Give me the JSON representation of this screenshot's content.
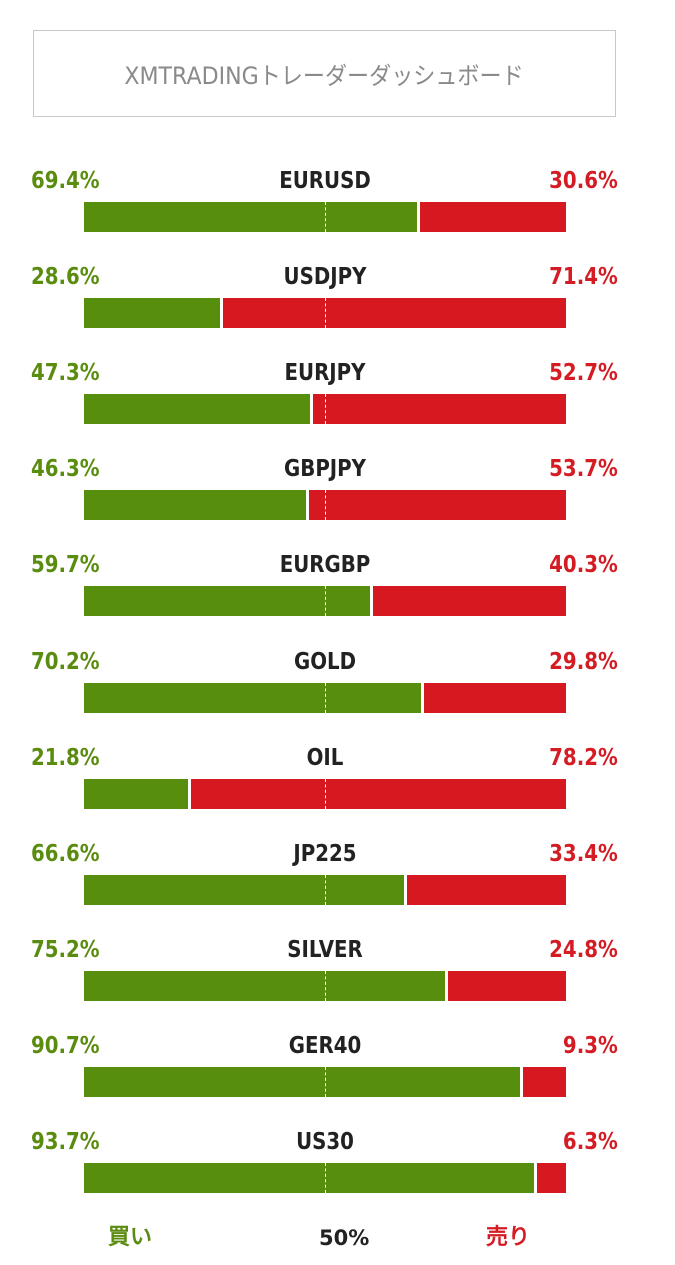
{
  "title": "XMTRADINGトレーダーダッシュボード",
  "chart_data": {
    "type": "bar",
    "orientation": "horizontal-stacked",
    "categories": [
      "EURUSD",
      "USDJPY",
      "EURJPY",
      "GBPJPY",
      "EURGBP",
      "GOLD",
      "OIL",
      "JP225",
      "SILVER",
      "GER40",
      "US30"
    ],
    "series": [
      {
        "name": "買い",
        "values": [
          69.4,
          28.6,
          47.3,
          46.3,
          59.7,
          70.2,
          21.8,
          66.6,
          75.2,
          90.7,
          93.7
        ],
        "color": "#578e0e"
      },
      {
        "name": "売り",
        "values": [
          30.6,
          71.4,
          52.7,
          53.7,
          40.3,
          29.8,
          78.2,
          33.4,
          24.8,
          9.3,
          6.3
        ],
        "color": "#d61920"
      }
    ],
    "buy_labels": [
      "69.4%",
      "28.6%",
      "47.3%",
      "46.3%",
      "59.7%",
      "70.2%",
      "21.8%",
      "66.6%",
      "75.2%",
      "90.7%",
      "93.7%"
    ],
    "sell_labels": [
      "30.6%",
      "71.4%",
      "52.7%",
      "53.7%",
      "40.3%",
      "29.8%",
      "78.2%",
      "33.4%",
      "24.8%",
      "9.3%",
      "6.3%"
    ],
    "xlim": [
      0,
      100
    ],
    "reference_line": 50
  },
  "legend": {
    "buy": "買い",
    "mid": "50%",
    "sell": "売り"
  },
  "colors": {
    "buy": "#578e0e",
    "sell": "#d61920",
    "buy_text": "#5a8c10",
    "sell_text": "#d41c24"
  }
}
